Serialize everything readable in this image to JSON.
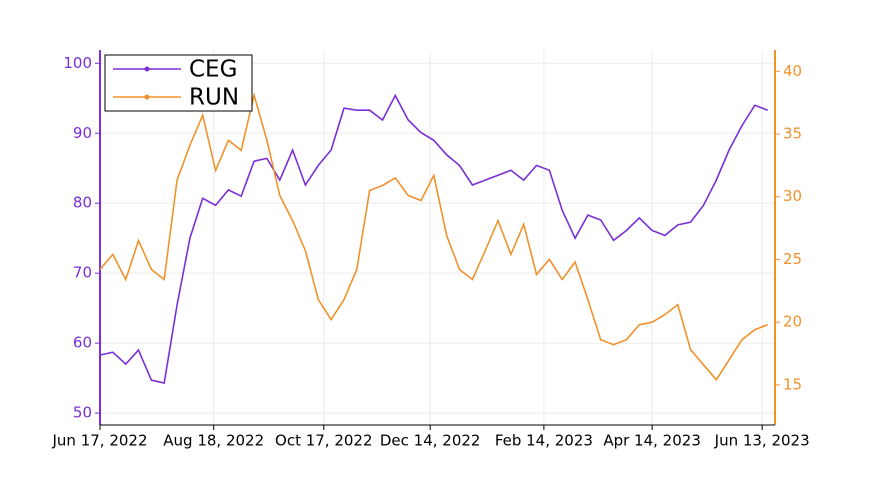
{
  "chart_data": {
    "type": "line",
    "x": [
      "2022-06-17",
      "2022-06-24",
      "2022-07-01",
      "2022-07-08",
      "2022-07-15",
      "2022-07-22",
      "2022-07-29",
      "2022-08-05",
      "2022-08-12",
      "2022-08-19",
      "2022-08-26",
      "2022-09-02",
      "2022-09-09",
      "2022-09-16",
      "2022-09-23",
      "2022-09-30",
      "2022-10-07",
      "2022-10-14",
      "2022-10-21",
      "2022-10-28",
      "2022-11-04",
      "2022-11-11",
      "2022-11-18",
      "2022-11-25",
      "2022-12-02",
      "2022-12-09",
      "2022-12-16",
      "2022-12-23",
      "2022-12-30",
      "2023-01-06",
      "2023-01-13",
      "2023-01-20",
      "2023-01-27",
      "2023-02-03",
      "2023-02-10",
      "2023-02-17",
      "2023-02-24",
      "2023-03-03",
      "2023-03-10",
      "2023-03-17",
      "2023-03-24",
      "2023-03-31",
      "2023-04-07",
      "2023-04-14",
      "2023-04-21",
      "2023-04-28",
      "2023-05-05",
      "2023-05-12",
      "2023-05-19",
      "2023-05-26",
      "2023-06-02",
      "2023-06-09",
      "2023-06-16"
    ],
    "series": [
      {
        "name": "CEG",
        "color": "#7b2fd6",
        "axis": "y",
        "values": [
          58.3,
          58.7,
          57,
          59,
          54.7,
          54.3,
          65.4,
          75,
          80.7,
          79.7,
          81.9,
          81,
          86,
          86.4,
          83.3,
          87.6,
          82.6,
          85.4,
          87.6,
          93.6,
          93.3,
          93.3,
          91.9,
          95.4,
          91.9,
          90.1,
          89,
          86.9,
          85.4,
          82.6,
          83.3,
          84,
          84.7,
          83.3,
          85.4,
          84.7,
          79,
          75,
          78.3,
          77.6,
          74.7,
          76.1,
          77.9,
          76.1,
          75.4,
          76.9,
          77.3,
          79.7,
          83.3,
          87.6,
          91.1,
          94,
          93.3
        ]
      },
      {
        "name": "RUN",
        "color": "#f0922b",
        "axis": "y2",
        "values": [
          24.2,
          25.4,
          23.4,
          26.5,
          24.2,
          23.4,
          31.3,
          34.1,
          36.5,
          32.1,
          34.5,
          33.7,
          38.1,
          34.5,
          30.1,
          28.1,
          25.7,
          21.8,
          20.2,
          21.8,
          24.2,
          30.5,
          30.9,
          31.5,
          30.1,
          29.7,
          31.7,
          26.9,
          24.2,
          23.4,
          25.7,
          28.1,
          25.4,
          27.8,
          23.8,
          25,
          23.4,
          24.8,
          21.8,
          18.6,
          18.2,
          18.6,
          19.8,
          20,
          20.6,
          21.4,
          17.8,
          16.6,
          15.4,
          17,
          18.6,
          19.4,
          19.8
        ]
      }
    ],
    "xlim": [
      "2022-06-17",
      "2023-06-20"
    ],
    "xticks": [
      {
        "value": "2022-06-17",
        "label": "Jun 17, 2022"
      },
      {
        "value": "2022-08-18",
        "label": "Aug 18, 2022"
      },
      {
        "value": "2022-10-17",
        "label": "Oct 17, 2022"
      },
      {
        "value": "2022-12-14",
        "label": "Dec 14, 2022"
      },
      {
        "value": "2023-02-14",
        "label": "Feb 14, 2023"
      },
      {
        "value": "2023-04-14",
        "label": "Apr 14, 2023"
      },
      {
        "value": "2023-06-13",
        "label": "Jun 13, 2023"
      }
    ],
    "ylim": [
      48.3,
      101.9
    ],
    "yticks": [
      50,
      60,
      70,
      80,
      90,
      100
    ],
    "y2lim": [
      11.8,
      41.7
    ],
    "y2ticks": [
      15,
      20,
      25,
      30,
      35,
      40
    ],
    "grid": true,
    "legend": "upper left"
  }
}
